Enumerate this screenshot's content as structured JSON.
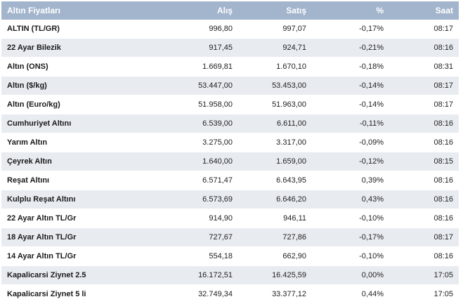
{
  "table": {
    "headers": {
      "name": "Altın Fiyatları",
      "alis": "Alış",
      "satis": "Satış",
      "pct": "%",
      "saat": "Saat"
    },
    "rows": [
      {
        "name": "ALTIN (TL/GR)",
        "alis": "996,80",
        "satis": "997,07",
        "pct": "-0,17%",
        "saat": "08:17"
      },
      {
        "name": "22 Ayar Bilezik",
        "alis": "917,45",
        "satis": "924,71",
        "pct": "-0,21%",
        "saat": "08:16"
      },
      {
        "name": "Altın (ONS)",
        "alis": "1.669,81",
        "satis": "1.670,10",
        "pct": "-0,18%",
        "saat": "08:31"
      },
      {
        "name": "Altın ($/kg)",
        "alis": "53.447,00",
        "satis": "53.453,00",
        "pct": "-0,14%",
        "saat": "08:17"
      },
      {
        "name": "Altın (Euro/kg)",
        "alis": "51.958,00",
        "satis": "51.963,00",
        "pct": "-0,14%",
        "saat": "08:17"
      },
      {
        "name": "Cumhuriyet Altını",
        "alis": "6.539,00",
        "satis": "6.611,00",
        "pct": "-0,11%",
        "saat": "08:16"
      },
      {
        "name": "Yarım Altın",
        "alis": "3.275,00",
        "satis": "3.317,00",
        "pct": "-0,09%",
        "saat": "08:16"
      },
      {
        "name": "Çeyrek Altın",
        "alis": "1.640,00",
        "satis": "1.659,00",
        "pct": "-0,12%",
        "saat": "08:15"
      },
      {
        "name": "Reşat Altını",
        "alis": "6.571,47",
        "satis": "6.643,95",
        "pct": "0,39%",
        "saat": "08:16"
      },
      {
        "name": "Kulplu Reşat Altını",
        "alis": "6.573,69",
        "satis": "6.646,20",
        "pct": "0,43%",
        "saat": "08:16"
      },
      {
        "name": "22 Ayar Altın TL/Gr",
        "alis": "914,90",
        "satis": "946,11",
        "pct": "-0,10%",
        "saat": "08:16"
      },
      {
        "name": "18 Ayar Altın TL/Gr",
        "alis": "727,67",
        "satis": "727,86",
        "pct": "-0,17%",
        "saat": "08:17"
      },
      {
        "name": "14 Ayar Altın TL/Gr",
        "alis": "554,18",
        "satis": "662,90",
        "pct": "-0,10%",
        "saat": "08:16"
      },
      {
        "name": "Kapalicarsi Ziynet 2.5",
        "alis": "16.172,51",
        "satis": "16.425,59",
        "pct": "0,00%",
        "saat": "17:05"
      },
      {
        "name": "Kapalicarsi Ziynet 5 li",
        "alis": "32.749,34",
        "satis": "33.377,12",
        "pct": "0,44%",
        "saat": "17:05"
      }
    ]
  },
  "colors": {
    "header_bg": "#a2b5cd",
    "row_alt_bg": "#e8ecf1"
  }
}
